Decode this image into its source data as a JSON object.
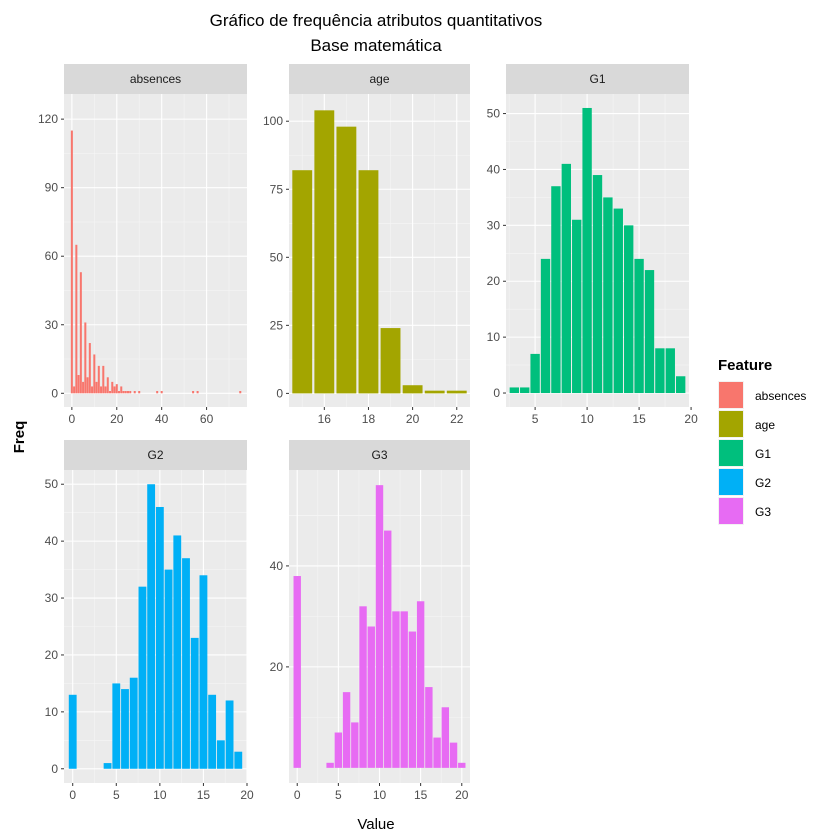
{
  "chart_data": {
    "type": "bar",
    "title": "Gráfico de frequência atributos quantitativos",
    "subtitle": "Base matemática",
    "xlabel": "Value",
    "ylabel": "Freq",
    "legend": {
      "title": "Feature",
      "placement": "right",
      "items": [
        {
          "name": "absences",
          "color": "#F8766D"
        },
        {
          "name": "age",
          "color": "#A3A500"
        },
        {
          "name": "G1",
          "color": "#00BF7D"
        },
        {
          "name": "G2",
          "color": "#00B0F6"
        },
        {
          "name": "G3",
          "color": "#E76BF3"
        }
      ]
    },
    "grid": true,
    "panels": [
      {
        "name": "absences",
        "color": "#F8766D",
        "xlim": [
          -3.5,
          78
        ],
        "ylim": [
          -6,
          131
        ],
        "xticks": [
          0,
          20,
          40,
          60
        ],
        "yticks": [
          0,
          30,
          60,
          90,
          120
        ],
        "bar_width": 0.9,
        "points": [
          [
            0,
            115
          ],
          [
            1,
            3
          ],
          [
            2,
            65
          ],
          [
            3,
            8
          ],
          [
            4,
            53
          ],
          [
            5,
            5
          ],
          [
            6,
            31
          ],
          [
            7,
            7
          ],
          [
            8,
            22
          ],
          [
            9,
            3
          ],
          [
            10,
            17
          ],
          [
            11,
            5
          ],
          [
            12,
            12
          ],
          [
            13,
            3
          ],
          [
            14,
            12
          ],
          [
            15,
            3
          ],
          [
            16,
            7
          ],
          [
            17,
            1
          ],
          [
            18,
            5
          ],
          [
            19,
            3
          ],
          [
            20,
            4
          ],
          [
            21,
            1
          ],
          [
            22,
            3
          ],
          [
            23,
            1
          ],
          [
            24,
            1
          ],
          [
            25,
            1
          ],
          [
            26,
            1
          ],
          [
            28,
            1
          ],
          [
            30,
            1
          ],
          [
            38,
            1
          ],
          [
            40,
            1
          ],
          [
            54,
            1
          ],
          [
            56,
            1
          ],
          [
            75,
            1
          ]
        ]
      },
      {
        "name": "age",
        "color": "#A3A500",
        "xlim": [
          14.4,
          22.6
        ],
        "ylim": [
          -5,
          110
        ],
        "xticks": [
          16,
          18,
          20,
          22
        ],
        "yticks": [
          0,
          25,
          50,
          75,
          100
        ],
        "bar_width": 0.9,
        "points": [
          [
            15,
            82
          ],
          [
            16,
            104
          ],
          [
            17,
            98
          ],
          [
            18,
            82
          ],
          [
            19,
            24
          ],
          [
            20,
            3
          ],
          [
            21,
            1
          ],
          [
            22,
            1
          ]
        ]
      },
      {
        "name": "G1",
        "color": "#00BF7D",
        "xlim": [
          2.2,
          19.8
        ],
        "ylim": [
          -2.5,
          53.5
        ],
        "xticks": [
          5,
          10,
          15,
          20
        ],
        "yticks": [
          0,
          10,
          20,
          30,
          40,
          50
        ],
        "bar_width": 0.9,
        "points": [
          [
            3,
            1
          ],
          [
            4,
            1
          ],
          [
            5,
            7
          ],
          [
            6,
            24
          ],
          [
            7,
            37
          ],
          [
            8,
            41
          ],
          [
            9,
            31
          ],
          [
            10,
            51
          ],
          [
            11,
            39
          ],
          [
            12,
            35
          ],
          [
            13,
            33
          ],
          [
            14,
            30
          ],
          [
            15,
            24
          ],
          [
            16,
            22
          ],
          [
            17,
            8
          ],
          [
            18,
            8
          ],
          [
            19,
            3
          ]
        ]
      },
      {
        "name": "G2",
        "color": "#00B0F6",
        "xlim": [
          -1,
          20
        ],
        "ylim": [
          -2.5,
          52.5
        ],
        "xticks": [
          0,
          5,
          10,
          15,
          20
        ],
        "yticks": [
          0,
          10,
          20,
          30,
          40,
          50
        ],
        "bar_width": 0.9,
        "points": [
          [
            0,
            13
          ],
          [
            4,
            1
          ],
          [
            5,
            15
          ],
          [
            6,
            14
          ],
          [
            7,
            16
          ],
          [
            8,
            32
          ],
          [
            9,
            50
          ],
          [
            10,
            46
          ],
          [
            11,
            35
          ],
          [
            12,
            41
          ],
          [
            13,
            37
          ],
          [
            14,
            23
          ],
          [
            15,
            34
          ],
          [
            16,
            13
          ],
          [
            17,
            5
          ],
          [
            18,
            12
          ],
          [
            19,
            3
          ]
        ]
      },
      {
        "name": "G3",
        "color": "#E76BF3",
        "xlim": [
          -1,
          21
        ],
        "ylim": [
          -3,
          59
        ],
        "xticks": [
          0,
          5,
          10,
          15,
          20
        ],
        "yticks": [
          20,
          40
        ],
        "bar_width": 0.9,
        "points": [
          [
            0,
            38
          ],
          [
            4,
            1
          ],
          [
            5,
            7
          ],
          [
            6,
            15
          ],
          [
            7,
            9
          ],
          [
            8,
            32
          ],
          [
            9,
            28
          ],
          [
            10,
            56
          ],
          [
            11,
            47
          ],
          [
            12,
            31
          ],
          [
            13,
            31
          ],
          [
            14,
            27
          ],
          [
            15,
            33
          ],
          [
            16,
            16
          ],
          [
            17,
            6
          ],
          [
            18,
            12
          ],
          [
            19,
            5
          ],
          [
            20,
            1
          ]
        ]
      }
    ]
  }
}
